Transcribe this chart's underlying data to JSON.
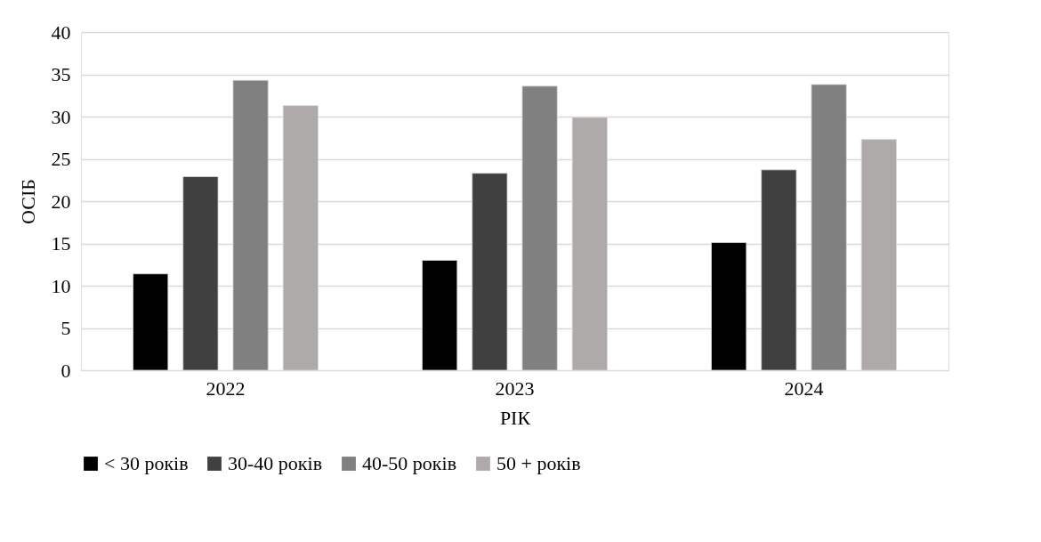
{
  "chart_data": {
    "type": "bar",
    "xlabel": "РІК",
    "ylabel": "ОСІБ",
    "categories": [
      "2022",
      "2023",
      "2024"
    ],
    "series": [
      {
        "name": "< 30 років",
        "color": "#000000",
        "values": [
          11.4,
          13.0,
          15.1
        ]
      },
      {
        "name": "30-40 років",
        "color": "#404040",
        "values": [
          22.9,
          23.3,
          23.7
        ]
      },
      {
        "name": "40-50 років",
        "color": "#808080",
        "values": [
          34.3,
          33.6,
          33.8
        ]
      },
      {
        "name": "50 + років",
        "color": "#aeaaaa",
        "values": [
          31.3,
          29.9,
          27.3
        ]
      }
    ],
    "ylim": [
      0,
      40
    ],
    "yticks": [
      0,
      5,
      10,
      15,
      20,
      25,
      30,
      35,
      40
    ],
    "grid": "y",
    "legend": "bottom"
  }
}
